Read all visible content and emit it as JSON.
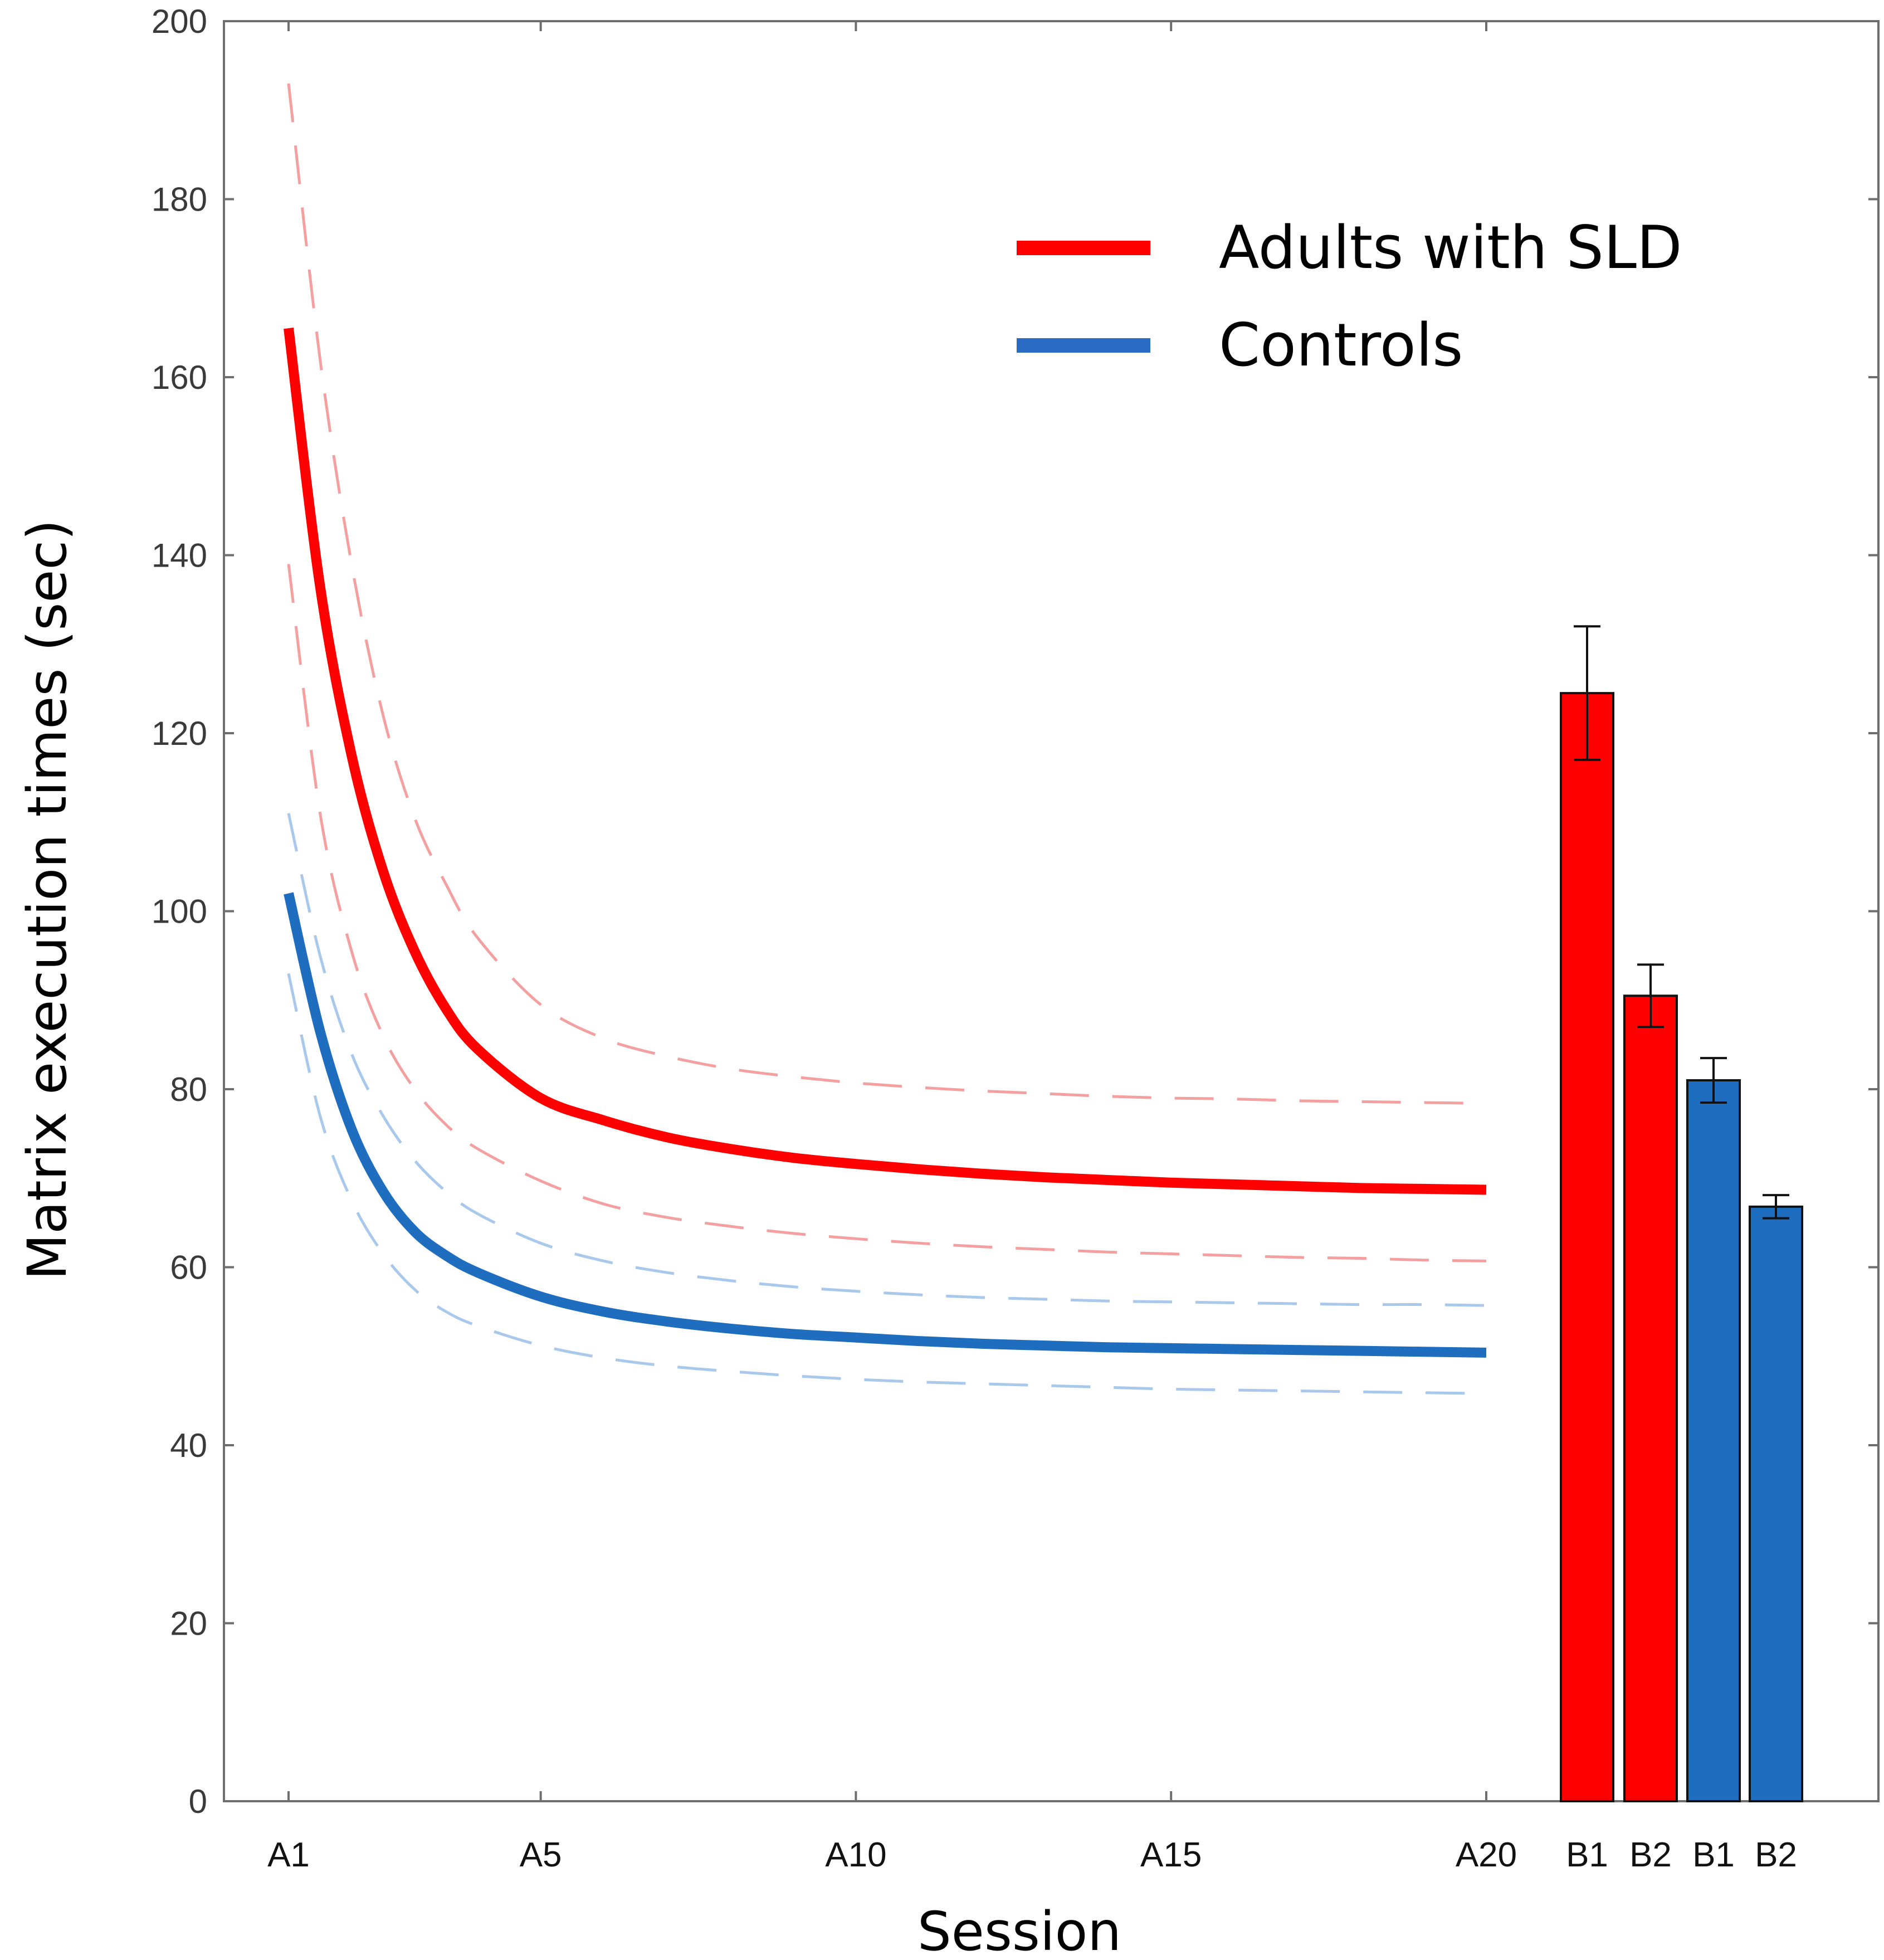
{
  "chart_data": {
    "type": "line",
    "title": "",
    "xlabel": "Session",
    "ylabel": "Matrix execution times (sec)",
    "ylim": [
      0,
      200
    ],
    "y_ticks": [
      0,
      20,
      40,
      60,
      80,
      100,
      120,
      140,
      160,
      180,
      200
    ],
    "x_ticks": [
      "A1",
      "A5",
      "A10",
      "A15",
      "A20"
    ],
    "x_range": [
      1,
      20
    ],
    "grid": false,
    "legend_position": "top-right",
    "series": [
      {
        "name": "Adults with SLD",
        "color": "#ff0000",
        "style": "solid",
        "x": [
          1,
          1.5,
          2,
          2.5,
          3,
          3.5,
          4,
          5,
          6,
          7,
          8,
          9,
          10,
          11,
          12,
          13,
          14,
          15,
          16,
          17,
          18,
          19,
          20
        ],
        "values": [
          165.5,
          136.5,
          117.5,
          104.5,
          95.5,
          89.0,
          84.5,
          79.0,
          76.5,
          74.6,
          73.3,
          72.3,
          71.6,
          71.0,
          70.5,
          70.1,
          69.8,
          69.5,
          69.3,
          69.1,
          68.9,
          68.8,
          68.7
        ]
      },
      {
        "name": "Adults with SLD upper bound",
        "color": "#f4a0a0",
        "style": "dashed",
        "x": [
          1,
          1.5,
          2,
          2.5,
          3,
          3.5,
          4,
          5,
          6,
          7,
          8,
          9,
          10,
          11,
          12,
          13,
          14,
          15,
          16,
          17,
          18,
          19,
          20
        ],
        "values": [
          193.0,
          162.0,
          139.0,
          122.0,
          110.5,
          103.0,
          97.0,
          89.5,
          85.7,
          83.7,
          82.3,
          81.4,
          80.7,
          80.2,
          79.8,
          79.5,
          79.2,
          79.0,
          78.9,
          78.7,
          78.6,
          78.5,
          78.4
        ]
      },
      {
        "name": "Adults with SLD lower bound",
        "color": "#f4a0a0",
        "style": "dashed",
        "x": [
          1,
          1.5,
          2,
          2.5,
          3,
          3.5,
          4,
          5,
          6,
          7,
          8,
          9,
          10,
          11,
          12,
          13,
          14,
          15,
          16,
          17,
          18,
          19,
          20
        ],
        "values": [
          139.0,
          111.0,
          95.5,
          86.0,
          80.0,
          76.0,
          73.3,
          69.7,
          67.1,
          65.6,
          64.6,
          63.8,
          63.2,
          62.7,
          62.3,
          62.0,
          61.7,
          61.5,
          61.3,
          61.1,
          61.0,
          60.8,
          60.7
        ]
      },
      {
        "name": "Controls",
        "color": "#1f6dbe",
        "style": "solid",
        "x": [
          1,
          1.5,
          2,
          2.5,
          3,
          3.5,
          4,
          5,
          6,
          7,
          8,
          9,
          10,
          11,
          12,
          13,
          14,
          15,
          16,
          17,
          18,
          19,
          20
        ],
        "values": [
          102.0,
          86.5,
          75.5,
          68.5,
          64.0,
          61.3,
          59.4,
          56.7,
          55.0,
          53.9,
          53.1,
          52.5,
          52.1,
          51.7,
          51.4,
          51.2,
          51.0,
          50.9,
          50.8,
          50.7,
          50.6,
          50.5,
          50.4
        ]
      },
      {
        "name": "Controls upper bound",
        "color": "#a8c8ec",
        "style": "dashed",
        "x": [
          1,
          1.5,
          2,
          2.5,
          3,
          3.5,
          4,
          5,
          6,
          7,
          8,
          9,
          10,
          11,
          12,
          13,
          14,
          15,
          16,
          17,
          18,
          19,
          20
        ],
        "values": [
          111.0,
          95.0,
          84.0,
          77.0,
          72.0,
          68.5,
          66.0,
          62.7,
          60.7,
          59.4,
          58.5,
          57.8,
          57.3,
          56.9,
          56.6,
          56.4,
          56.2,
          56.1,
          56.0,
          55.9,
          55.8,
          55.8,
          55.7
        ]
      },
      {
        "name": "Controls lower bound",
        "color": "#a8c8ec",
        "style": "dashed",
        "x": [
          1,
          1.5,
          2,
          2.5,
          3,
          3.5,
          4,
          5,
          6,
          7,
          8,
          9,
          10,
          11,
          12,
          13,
          14,
          15,
          16,
          17,
          18,
          19,
          20
        ],
        "values": [
          93.0,
          77.0,
          67.5,
          61.5,
          57.5,
          55.0,
          53.4,
          51.2,
          49.8,
          48.9,
          48.3,
          47.8,
          47.4,
          47.1,
          46.9,
          46.7,
          46.5,
          46.3,
          46.2,
          46.1,
          46.0,
          45.9,
          45.8
        ]
      }
    ],
    "bars": {
      "categories": [
        "B1",
        "B2",
        "B1",
        "B2"
      ],
      "values": [
        124.5,
        90.5,
        81.0,
        66.8
      ],
      "errors": [
        7.5,
        3.5,
        2.5,
        1.3
      ],
      "colors": [
        "#ff0000",
        "#ff0000",
        "#1f6dbe",
        "#1f6dbe"
      ]
    },
    "legend": [
      {
        "label": "Adults with SLD",
        "color": "#ff0000"
      },
      {
        "label": "Controls",
        "color": "#2a6cc4"
      }
    ]
  }
}
